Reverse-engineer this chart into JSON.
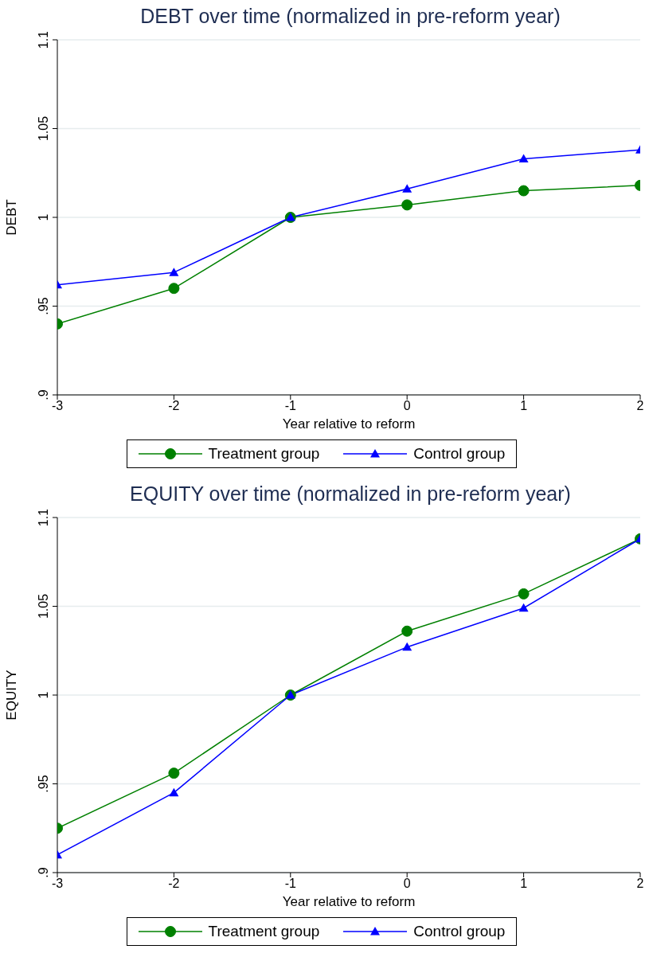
{
  "chart_data": [
    {
      "type": "line",
      "title": "DEBT over time (normalized in pre-reform year)",
      "xlabel": "Year relative to reform",
      "ylabel": "DEBT",
      "x": [
        -3,
        -2,
        -1,
        0,
        1,
        2
      ],
      "xlim": [
        -3,
        2
      ],
      "xticks": [
        -3,
        -2,
        -1,
        0,
        1,
        2
      ],
      "ylim": [
        0.9,
        1.1
      ],
      "yticks": [
        {
          "value": 0.9,
          "label": ".9"
        },
        {
          "value": 0.95,
          "label": ".95"
        },
        {
          "value": 1,
          "label": "1"
        },
        {
          "value": 1.05,
          "label": "1.05"
        },
        {
          "value": 1.1,
          "label": "1.1"
        }
      ],
      "grid": "y",
      "legend": "bottom",
      "series": [
        {
          "name": "Treatment group",
          "color": "#008000",
          "marker": "circle",
          "values": [
            0.94,
            0.96,
            1.0,
            1.007,
            1.015,
            1.018
          ]
        },
        {
          "name": "Control group",
          "color": "#0000ff",
          "marker": "triangle",
          "values": [
            0.962,
            0.969,
            1.0,
            1.016,
            1.033,
            1.038
          ]
        }
      ]
    },
    {
      "type": "line",
      "title": "EQUITY over time (normalized in pre-reform year)",
      "xlabel": "Year relative to reform",
      "ylabel": "EQUITY",
      "x": [
        -3,
        -2,
        -1,
        0,
        1,
        2
      ],
      "xlim": [
        -3,
        2
      ],
      "xticks": [
        -3,
        -2,
        -1,
        0,
        1,
        2
      ],
      "ylim": [
        0.9,
        1.1
      ],
      "yticks": [
        {
          "value": 0.9,
          "label": ".9"
        },
        {
          "value": 0.95,
          "label": ".95"
        },
        {
          "value": 1,
          "label": "1"
        },
        {
          "value": 1.05,
          "label": "1.05"
        },
        {
          "value": 1.1,
          "label": "1.1"
        }
      ],
      "grid": "y",
      "legend": "bottom",
      "series": [
        {
          "name": "Treatment group",
          "color": "#008000",
          "marker": "circle",
          "values": [
            0.925,
            0.956,
            1.0,
            1.036,
            1.057,
            1.088
          ]
        },
        {
          "name": "Control group",
          "color": "#0000ff",
          "marker": "triangle",
          "values": [
            0.91,
            0.945,
            1.0,
            1.027,
            1.049,
            1.088
          ]
        }
      ]
    }
  ]
}
